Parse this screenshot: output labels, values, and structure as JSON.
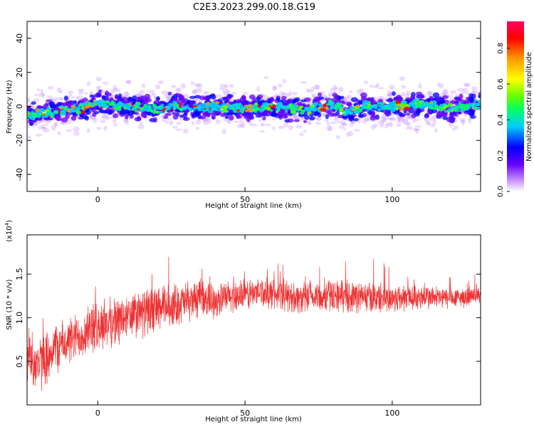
{
  "title": "C2E3.2023.299.00.18.G19",
  "chart_data": [
    {
      "type": "heatmap",
      "title": "C2E3.2023.299.00.18.G19",
      "xlabel": "Height of straight line (km)",
      "ylabel": "Frequency (Hz)",
      "xlim": [
        -24,
        130
      ],
      "ylim": [
        -50,
        50
      ],
      "xticks": [
        0,
        50,
        100
      ],
      "yticks": [
        -40,
        -20,
        0,
        20,
        40
      ],
      "grid": false,
      "colorbar": {
        "label": "Normalized spectral amplitude",
        "range": [
          0,
          0.95
        ],
        "ticks": [
          "0.0",
          "0.2",
          "0.4",
          "0.6",
          "0.8"
        ],
        "colors": [
          "#ffffff",
          "#cc99ff",
          "#6600ff",
          "#0000ff",
          "#00ccff",
          "#00ff66",
          "#66ff00",
          "#ffff00",
          "#ff9900",
          "#ff0000",
          "#ff0066"
        ]
      },
      "ridge_center": {
        "x": [
          -24,
          -15,
          -10,
          -5,
          0,
          5,
          10,
          20,
          25,
          30,
          40,
          50,
          60,
          70,
          80,
          85,
          90,
          100,
          110,
          120,
          130
        ],
        "y": [
          -5,
          -3,
          -2,
          -1,
          2,
          1,
          0,
          -2,
          1,
          -1,
          0,
          -1,
          0,
          -2,
          1,
          -3,
          0,
          0,
          1,
          -1,
          1
        ]
      },
      "ridge_halfwidth_hz": 6
    },
    {
      "type": "line",
      "title": "",
      "xlabel": "Height of straight line (km)",
      "ylabel": "SNR (10 * v/v)",
      "yscale_note": "(x10",
      "yscale_exp": "4",
      "yscale_close": ")",
      "xlim": [
        -24,
        130
      ],
      "ylim": [
        0,
        1.95
      ],
      "xticks": [
        0,
        50,
        100
      ],
      "yticks": [
        "0.5",
        "1.0",
        "1.5"
      ],
      "grid": false,
      "series": [
        {
          "color": "#ee3333",
          "trend": {
            "x": [
              -24,
              -20,
              -15,
              -10,
              -5,
              0,
              5,
              10,
              15,
              20,
              25,
              30,
              35,
              40,
              45,
              50,
              55,
              60,
              70,
              80,
              90,
              100,
              110,
              120,
              130
            ],
            "y": [
              0.6,
              0.45,
              0.65,
              0.72,
              0.82,
              0.9,
              0.95,
              1.0,
              1.05,
              1.1,
              1.14,
              1.18,
              1.22,
              1.2,
              1.24,
              1.26,
              1.3,
              1.27,
              1.22,
              1.26,
              1.24,
              1.22,
              1.24,
              1.22,
              1.25
            ]
          },
          "spread": {
            "x": [
              -24,
              -10,
              0,
              20,
              40,
              60,
              80,
              100,
              130
            ],
            "y": [
              0.35,
              0.28,
              0.3,
              0.28,
              0.2,
              0.18,
              0.2,
              0.18,
              0.1
            ]
          }
        }
      ]
    }
  ]
}
